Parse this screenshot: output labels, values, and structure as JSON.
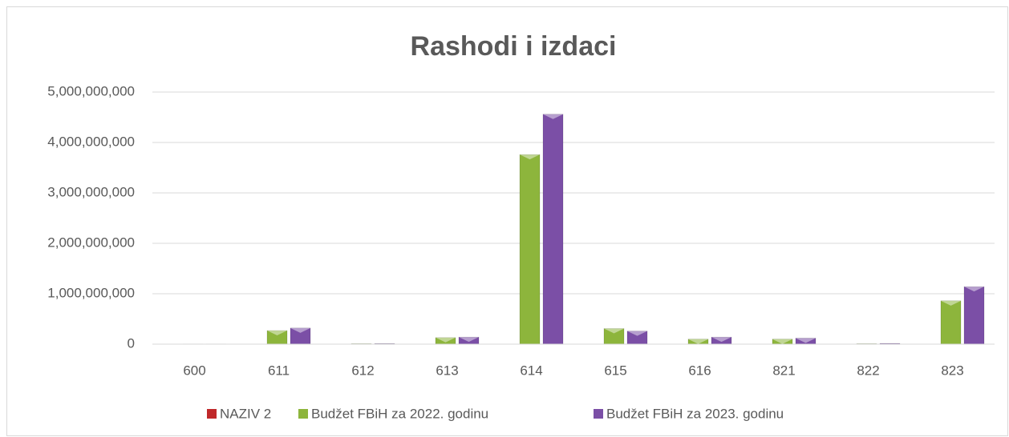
{
  "chart_data": {
    "type": "bar",
    "title": "Rashodi i izdaci",
    "categories": [
      "600",
      "611",
      "612",
      "613",
      "614",
      "615",
      "616",
      "821",
      "822",
      "823"
    ],
    "series": [
      {
        "name": "NAZIV 2",
        "color": "#c0282a",
        "values": [
          0,
          0,
          0,
          0,
          0,
          0,
          0,
          0,
          0,
          0
        ]
      },
      {
        "name": "Budžet FBiH za 2022. godinu",
        "color": "#8db53c",
        "values": [
          5000000,
          270000000,
          10000000,
          130000000,
          3760000000,
          310000000,
          100000000,
          100000000,
          10000000,
          860000000
        ]
      },
      {
        "name": "Budžet FBiH za 2023. godinu",
        "color": "#7b4fa6",
        "values": [
          5000000,
          320000000,
          12000000,
          140000000,
          4560000000,
          260000000,
          140000000,
          120000000,
          15000000,
          1140000000
        ]
      }
    ],
    "ylim": [
      0,
      5000000000
    ],
    "yticks": [
      0,
      {
        "value": 1000000000,
        "label": "1,000,000,000"
      },
      {
        "value": 2000000000,
        "label": "2,000,000,000"
      },
      {
        "value": 3000000000,
        "label": "3,000,000,000"
      },
      {
        "value": 4000000000,
        "label": "4,000,000,000"
      },
      {
        "value": 5000000000,
        "label": "5,000,000,000"
      }
    ],
    "grid": true,
    "legend": "bottom"
  }
}
